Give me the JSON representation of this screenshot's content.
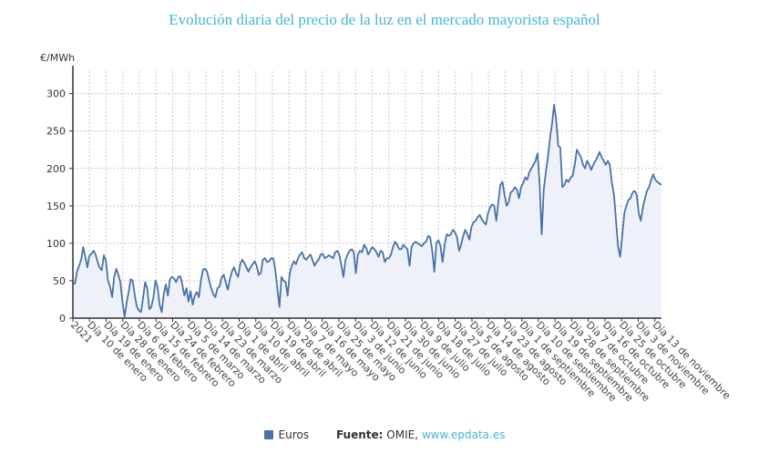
{
  "chart_data": {
    "type": "area",
    "title": "Evolución diaria del precio de la luz en el mercado mayorista español",
    "ylabel": "€/MWh",
    "xlabel": "",
    "ylim": [
      0,
      330
    ],
    "yticks": [
      0,
      50,
      100,
      150,
      200,
      250,
      300
    ],
    "grid": true,
    "legend_position": "bottom",
    "x_tick_labels": [
      "2021",
      "Día 10 de enero",
      "Día 19 de enero",
      "Día 28 de enero",
      "Día 6 de febrero",
      "Día 15 de febrero",
      "Día 24 de febrero",
      "Día 5 de marzo",
      "Día 14 de marzo",
      "Día 23 de marzo",
      "Día 1 de abril",
      "Día 10 de abril",
      "Día 19 de abril",
      "Día 28 de abril",
      "Día 7 de mayo",
      "Día 16 de mayo",
      "Día 25 de mayo",
      "Día 3 de junio",
      "Día 12 de junio",
      "Día 21 de junio",
      "Día 30 de junio",
      "Día 9 de julio",
      "Día 18 de julio",
      "Día 27 de julio",
      "Día 5 de agosto",
      "Día 14 de agosto",
      "Día 23 de agosto",
      "Día 1 de septiembre",
      "Día 10 de septiembre",
      "Día 19 de septiembre",
      "Día 28 de septiembre",
      "Día 7 de octubre",
      "Día 16 de octubre",
      "Día 25 de octubre",
      "Día 3 de noviembre",
      "Día 13 de noviembre"
    ],
    "x_step_days": 3,
    "series": [
      {
        "name": "Euros",
        "color": "#4a72a8",
        "values": [
          47,
          46,
          62,
          70,
          78,
          95,
          82,
          68,
          83,
          86,
          90,
          85,
          75,
          67,
          64,
          84,
          76,
          50,
          42,
          28,
          55,
          66,
          58,
          48,
          22,
          2,
          20,
          35,
          52,
          50,
          30,
          15,
          10,
          8,
          28,
          48,
          40,
          12,
          15,
          28,
          50,
          42,
          18,
          8,
          32,
          45,
          30,
          52,
          55,
          53,
          48,
          55,
          56,
          45,
          30,
          40,
          22,
          36,
          18,
          30,
          35,
          28,
          50,
          65,
          66,
          62,
          50,
          40,
          32,
          28,
          40,
          42,
          54,
          58,
          48,
          38,
          52,
          62,
          68,
          60,
          55,
          72,
          78,
          74,
          68,
          62,
          68,
          72,
          76,
          70,
          58,
          60,
          78,
          80,
          75,
          76,
          80,
          80,
          65,
          40,
          15,
          55,
          50,
          48,
          30,
          60,
          70,
          76,
          72,
          80,
          85,
          88,
          80,
          78,
          82,
          85,
          78,
          70,
          75,
          78,
          85,
          86,
          80,
          82,
          84,
          82,
          80,
          88,
          90,
          85,
          70,
          55,
          78,
          85,
          90,
          92,
          88,
          60,
          85,
          90,
          88,
          98,
          94,
          85,
          90,
          95,
          92,
          88,
          82,
          90,
          88,
          75,
          80,
          80,
          85,
          95,
          102,
          98,
          92,
          92,
          98,
          95,
          92,
          70,
          95,
          100,
          102,
          100,
          98,
          96,
          100,
          102,
          110,
          108,
          90,
          62,
          100,
          104,
          96,
          75,
          98,
          112,
          110,
          112,
          118,
          115,
          108,
          90,
          98,
          110,
          118,
          112,
          105,
          122,
          128,
          130,
          135,
          138,
          132,
          128,
          125,
          140,
          148,
          152,
          150,
          130,
          155,
          178,
          182,
          165,
          150,
          155,
          168,
          170,
          175,
          172,
          160,
          175,
          180,
          188,
          185,
          195,
          200,
          205,
          210,
          220,
          178,
          112,
          172,
          195,
          215,
          240,
          260,
          285,
          265,
          230,
          228,
          175,
          178,
          185,
          182,
          188,
          190,
          205,
          225,
          220,
          215,
          205,
          200,
          210,
          205,
          198,
          205,
          210,
          215,
          222,
          215,
          210,
          205,
          210,
          205,
          180,
          165,
          130,
          95,
          82,
          110,
          140,
          150,
          158,
          160,
          168,
          170,
          165,
          140,
          130,
          148,
          160,
          170,
          175,
          185,
          192,
          185,
          182,
          180,
          178
        ]
      }
    ]
  },
  "legend": {
    "series_label": "Euros",
    "source_label": "Fuente:",
    "source_text": "OMIE,",
    "source_link": "www.epdata.es"
  }
}
